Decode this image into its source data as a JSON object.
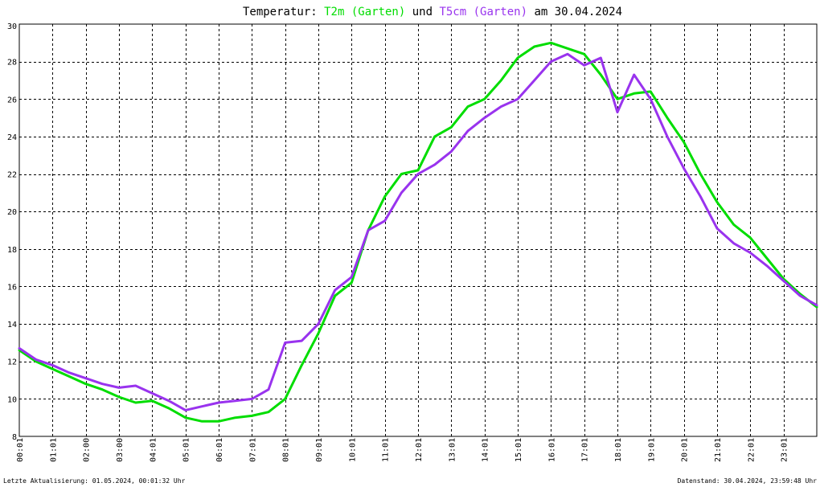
{
  "chart_data": {
    "type": "line",
    "title_parts": [
      {
        "text": "Temperatur: ",
        "color": "#000000"
      },
      {
        "text": "T2m (Garten)",
        "color": "#00dd00"
      },
      {
        "text": " und ",
        "color": "#000000"
      },
      {
        "text": "T5cm (Garten)",
        "color": "#9933ee"
      },
      {
        "text": " am 30.04.2024",
        "color": "#000000"
      }
    ],
    "x_tick_labels": [
      "00:01",
      "01:01",
      "02:00",
      "03:00",
      "04:01",
      "05:01",
      "06:01",
      "07:01",
      "08:01",
      "09:01",
      "10:01",
      "11:01",
      "12:01",
      "13:01",
      "14:01",
      "15:01",
      "16:01",
      "17:01",
      "18:01",
      "19:01",
      "20:01",
      "21:01",
      "22:01",
      "23:01"
    ],
    "xlim": [
      0,
      24
    ],
    "ylim": [
      8,
      30
    ],
    "y_tick_labels": [
      "8",
      "10",
      "12",
      "14",
      "16",
      "18",
      "20",
      "22",
      "24",
      "26",
      "28",
      "30"
    ],
    "y_ticks": [
      8,
      10,
      12,
      14,
      16,
      18,
      20,
      22,
      24,
      26,
      28,
      30
    ],
    "grid": true,
    "series": [
      {
        "name": "T2m (Garten)",
        "color": "#00dd00",
        "x": [
          0,
          0.5,
          1,
          1.5,
          2,
          2.5,
          3,
          3.5,
          4,
          4.5,
          5,
          5.5,
          6,
          6.5,
          7,
          7.5,
          8,
          8.5,
          9,
          9.5,
          10,
          10.5,
          11,
          11.5,
          12,
          12.5,
          13,
          13.5,
          14,
          14.5,
          15,
          15.5,
          16,
          16.5,
          17,
          17.5,
          18,
          18.5,
          19,
          19.5,
          20,
          20.5,
          21,
          21.5,
          22,
          22.5,
          23,
          23.5,
          24
        ],
        "y": [
          12.6,
          12.0,
          11.6,
          11.2,
          10.8,
          10.5,
          10.1,
          9.8,
          9.9,
          9.5,
          9.0,
          8.8,
          8.8,
          9.0,
          9.1,
          9.3,
          10.0,
          11.8,
          13.5,
          15.5,
          16.2,
          19.0,
          20.8,
          22.0,
          22.2,
          24.0,
          24.5,
          25.6,
          26.0,
          27.0,
          28.2,
          28.8,
          29.0,
          28.7,
          28.4,
          27.3,
          26.0,
          26.3,
          26.4,
          25.0,
          23.7,
          22.0,
          20.5,
          19.3,
          18.6,
          17.5,
          16.4,
          15.6,
          14.9
        ]
      },
      {
        "name": "T5cm (Garten)",
        "color": "#9933ee",
        "x": [
          0,
          0.5,
          1,
          1.5,
          2,
          2.5,
          3,
          3.5,
          4,
          4.5,
          5,
          5.5,
          6,
          6.5,
          7,
          7.5,
          8,
          8.5,
          9,
          9.5,
          10,
          10.5,
          11,
          11.5,
          12,
          12.5,
          13,
          13.5,
          14,
          14.5,
          15,
          15.5,
          16,
          16.5,
          17,
          17.5,
          18,
          18.5,
          19,
          19.5,
          20,
          20.5,
          21,
          21.5,
          22,
          22.5,
          23,
          23.5,
          24
        ],
        "y": [
          12.7,
          12.1,
          11.8,
          11.4,
          11.1,
          10.8,
          10.6,
          10.7,
          10.3,
          9.9,
          9.4,
          9.6,
          9.8,
          9.9,
          10.0,
          10.5,
          13.0,
          13.1,
          14.0,
          15.8,
          16.5,
          19.0,
          19.5,
          21.0,
          22.0,
          22.5,
          23.2,
          24.3,
          25.0,
          25.6,
          26.0,
          27.0,
          28.0,
          28.4,
          27.8,
          28.2,
          25.3,
          27.3,
          26.0,
          24.0,
          22.3,
          20.8,
          19.1,
          18.3,
          17.8,
          17.1,
          16.3,
          15.5,
          15.0
        ]
      }
    ]
  },
  "footer": {
    "left": "Letzte Aktualisierung: 01.05.2024, 00:01:32 Uhr",
    "right": "Datenstand: 30.04.2024, 23:59:48 Uhr"
  }
}
